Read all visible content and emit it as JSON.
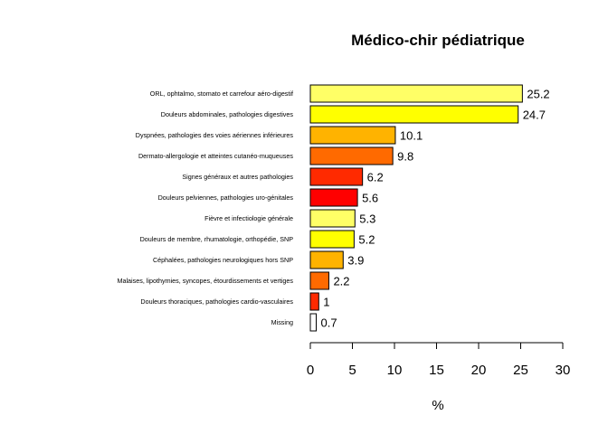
{
  "chart_data": {
    "type": "bar",
    "orientation": "horizontal",
    "title": "Médico-chir pédiatrique",
    "xlabel": "%",
    "ylabel": "",
    "xlim": [
      0,
      30
    ],
    "xticks": [
      "0",
      "5",
      "10",
      "15",
      "20",
      "25",
      "30"
    ],
    "grid": false,
    "legend": "none",
    "categories": [
      "ORL, ophtalmo, stomato et carrefour aéro-digestif",
      "Douleurs abdominales, pathologies digestives",
      "Dyspnées, pathologies des voies aériennes inférieures",
      "Dermato-allergologie et atteintes cutanéo-muqueuses",
      "Signes généraux et autres pathologies",
      "Douleurs pelviennes, pathologies uro-génitales",
      "Fièvre et infectiologie générale",
      "Douleurs de membre, rhumatologie, orthopédie, SNP",
      "Céphalées, pathologies neurologiques hors SNP",
      "Malaises, lipothymies, syncopes, étourdissements et vertiges",
      "Douleurs thoraciques, pathologies cardio-vasculaires",
      "Missing"
    ],
    "values": [
      25.2,
      24.7,
      10.1,
      9.8,
      6.2,
      5.6,
      5.3,
      5.2,
      3.9,
      2.2,
      1,
      0.7
    ],
    "value_labels": [
      "25.2",
      "24.7",
      "10.1",
      "9.8",
      "6.2",
      "5.6",
      "5.3",
      "5.2",
      "3.9",
      "2.2",
      "1",
      "0.7"
    ],
    "colors": [
      "#FFFF66",
      "#FFFF00",
      "#FFB300",
      "#FF6A00",
      "#FF2A00",
      "#FF0000",
      "#FFFF66",
      "#FFFF00",
      "#FFB300",
      "#FF6A00",
      "#FF2A00",
      "#FFFFFF"
    ]
  }
}
